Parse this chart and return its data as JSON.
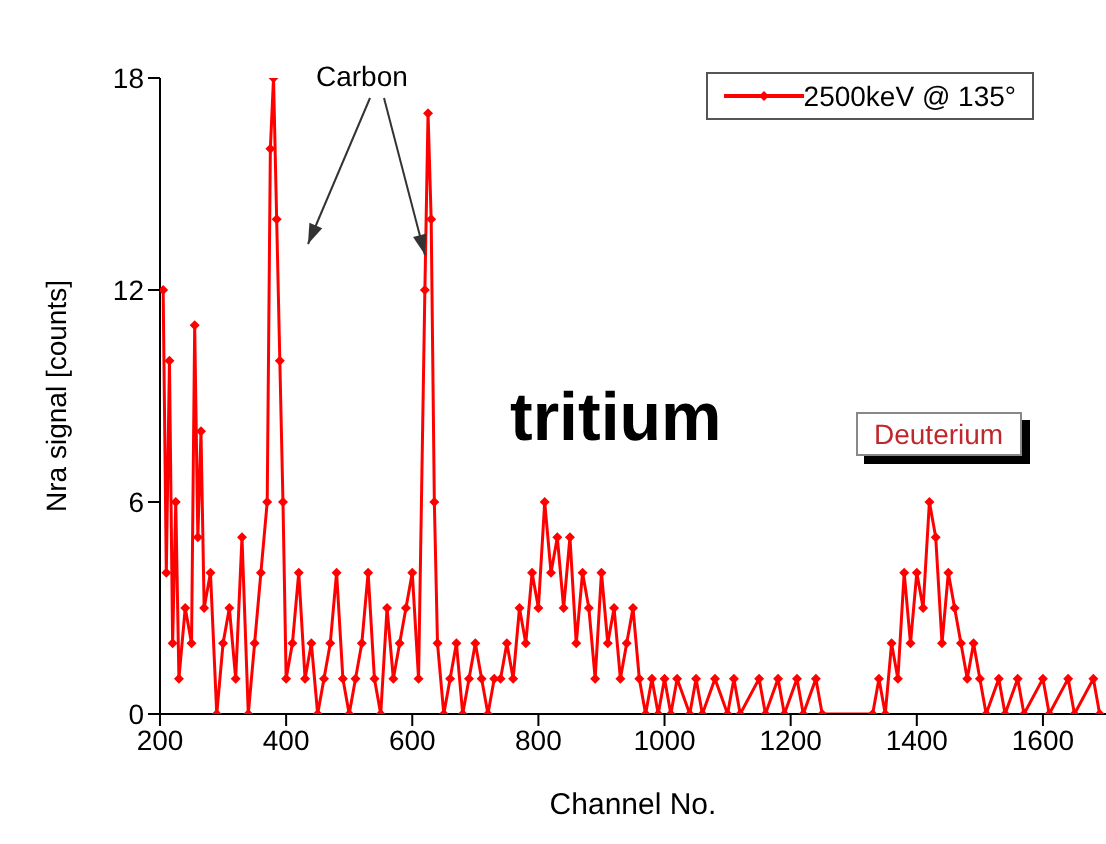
{
  "chart_data": {
    "type": "line",
    "xlabel": "Channel No.",
    "ylabel": "Nra signal [counts]",
    "x": [
      205,
      210,
      215,
      220,
      225,
      230,
      240,
      250,
      255,
      260,
      265,
      270,
      280,
      290,
      300,
      310,
      320,
      330,
      340,
      350,
      360,
      370,
      375,
      380,
      385,
      390,
      395,
      400,
      410,
      420,
      430,
      440,
      450,
      460,
      470,
      480,
      490,
      500,
      510,
      520,
      530,
      540,
      550,
      560,
      570,
      580,
      590,
      600,
      610,
      620,
      625,
      630,
      635,
      640,
      650,
      660,
      670,
      680,
      690,
      700,
      710,
      720,
      730,
      740,
      750,
      760,
      770,
      780,
      790,
      800,
      810,
      820,
      830,
      840,
      850,
      860,
      870,
      880,
      890,
      900,
      910,
      920,
      930,
      940,
      950,
      960,
      970,
      980,
      990,
      1000,
      1010,
      1020,
      1040,
      1050,
      1060,
      1080,
      1100,
      1110,
      1120,
      1150,
      1160,
      1180,
      1190,
      1210,
      1220,
      1240,
      1250,
      1330,
      1340,
      1350,
      1360,
      1370,
      1380,
      1390,
      1400,
      1410,
      1420,
      1430,
      1440,
      1450,
      1460,
      1470,
      1480,
      1490,
      1500,
      1510,
      1530,
      1540,
      1560,
      1570,
      1600,
      1610,
      1640,
      1650,
      1680,
      1690
    ],
    "series": [
      {
        "name": "2500keV @ 135°",
        "color": "#ff0000",
        "values": [
          12,
          4,
          10,
          2,
          6,
          1,
          3,
          2,
          11,
          5,
          8,
          3,
          4,
          0,
          2,
          3,
          1,
          5,
          0,
          2,
          4,
          6,
          16,
          18,
          14,
          10,
          6,
          1,
          2,
          4,
          1,
          2,
          0,
          1,
          2,
          4,
          1,
          0,
          1,
          2,
          4,
          1,
          0,
          3,
          1,
          2,
          3,
          4,
          1,
          12,
          17,
          14,
          6,
          2,
          0,
          1,
          2,
          0,
          1,
          2,
          1,
          0,
          1,
          1,
          2,
          1,
          3,
          2,
          4,
          3,
          6,
          4,
          5,
          3,
          5,
          2,
          4,
          3,
          1,
          4,
          2,
          3,
          1,
          2,
          3,
          1,
          0,
          1,
          0,
          1,
          0,
          1,
          0,
          1,
          0,
          1,
          0,
          1,
          0,
          1,
          0,
          1,
          0,
          1,
          0,
          1,
          0,
          0,
          1,
          0,
          2,
          1,
          4,
          2,
          4,
          3,
          6,
          5,
          2,
          4,
          3,
          2,
          1,
          2,
          1,
          0,
          1,
          0,
          1,
          0,
          1,
          0,
          1,
          0,
          1,
          0
        ]
      }
    ],
    "xlim": [
      200,
      1700
    ],
    "xticks": [
      200,
      400,
      600,
      800,
      1000,
      1200,
      1400,
      1600
    ],
    "ylim": [
      0,
      18
    ],
    "yticks": [
      0,
      6,
      12,
      18
    ],
    "marker": "diamond",
    "line_style": "solid",
    "grid": false,
    "legend": "top right",
    "annotations": [
      {
        "text": "Carbon",
        "x": 620,
        "y": 13
      },
      "tritium",
      "Deuterium"
    ]
  }
}
